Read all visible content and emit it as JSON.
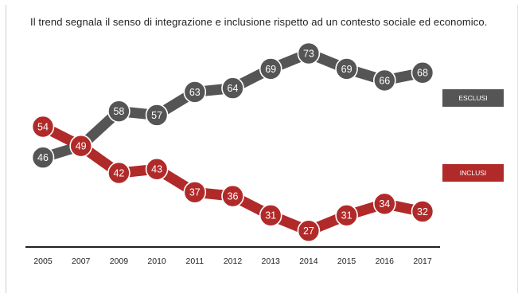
{
  "title": "Il trend segnala il senso di integrazione e inclusione rispetto ad un contesto sociale ed economico.",
  "colors": {
    "esclusi": "#555555",
    "inclusi": "#b12a2a",
    "axis": "#222222"
  },
  "chart_data": {
    "type": "line",
    "title": "Il trend segnala il senso di integrazione e inclusione rispetto ad un contesto sociale ed economico.",
    "categories": [
      "2005",
      "2007",
      "2009",
      "2010",
      "2011",
      "2012",
      "2013",
      "2014",
      "2015",
      "2016",
      "2017"
    ],
    "series": [
      {
        "name": "ESCLUSI",
        "values": [
          46,
          49,
          58,
          57,
          63,
          64,
          69,
          73,
          69,
          66,
          68
        ]
      },
      {
        "name": "INCLUSI",
        "values": [
          54,
          49,
          42,
          43,
          37,
          36,
          31,
          27,
          31,
          34,
          32
        ]
      }
    ],
    "data_labels": true,
    "legend": "right",
    "grid": false
  }
}
